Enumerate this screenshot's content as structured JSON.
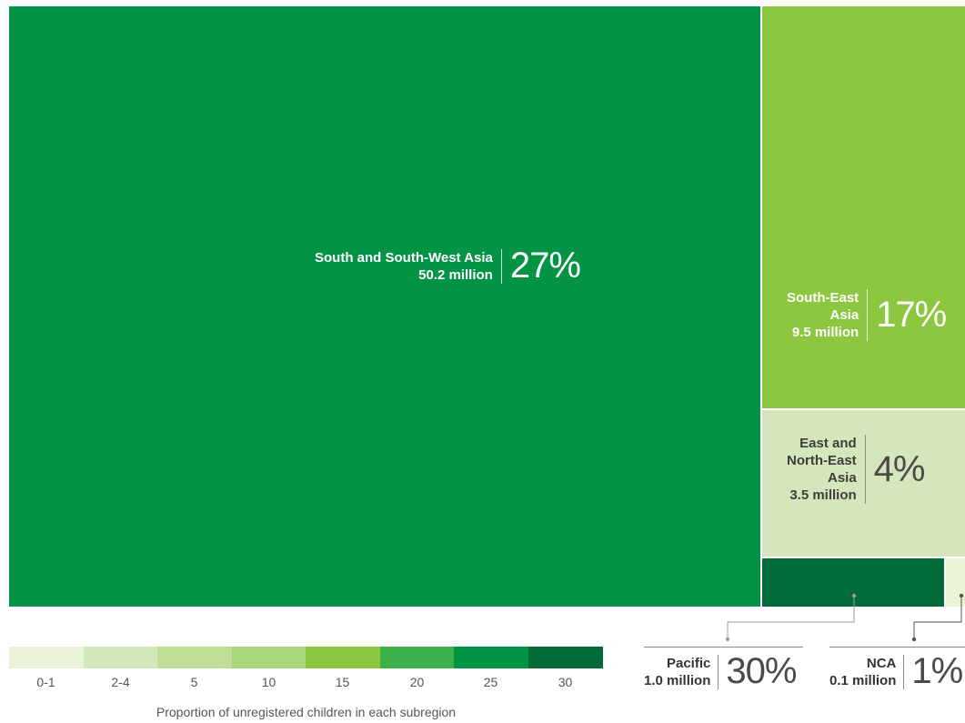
{
  "chart_data": {
    "type": "treemap",
    "subregions": [
      {
        "name": "South and South-West Asia",
        "names_lines": [
          "South and South-West Asia",
          "50.2 million"
        ],
        "children_millions": 50.2,
        "percent": 27,
        "percent_label": "27%"
      },
      {
        "name": "South-East Asia",
        "names_lines": [
          "South-East",
          "Asia",
          "9.5 million"
        ],
        "children_millions": 9.5,
        "percent": 17,
        "percent_label": "17%"
      },
      {
        "name": "East and North-East Asia",
        "names_lines": [
          "East and",
          "North-East",
          "Asia",
          "3.5 million"
        ],
        "children_millions": 3.5,
        "percent": 4,
        "percent_label": "4%"
      },
      {
        "name": "Pacific",
        "names_lines": [
          "Pacific",
          "1.0 million"
        ],
        "children_millions": 1.0,
        "percent": 30,
        "percent_label": "30%"
      },
      {
        "name": "NCA",
        "names_lines": [
          "NCA",
          "0.1 million"
        ],
        "children_millions": 0.1,
        "percent": 1,
        "percent_label": "1%"
      }
    ],
    "legend": {
      "title": "Proportion of unregistered children in each subregion",
      "labels": [
        "0-1",
        "2-4",
        "5",
        "10",
        "15",
        "20",
        "25",
        "30"
      ],
      "colors": [
        "#e8f3d8",
        "#d3e8b8",
        "#bfdf98",
        "#a8d67a",
        "#8dc63f",
        "#3cb04a",
        "#009444",
        "#006b37"
      ]
    }
  }
}
